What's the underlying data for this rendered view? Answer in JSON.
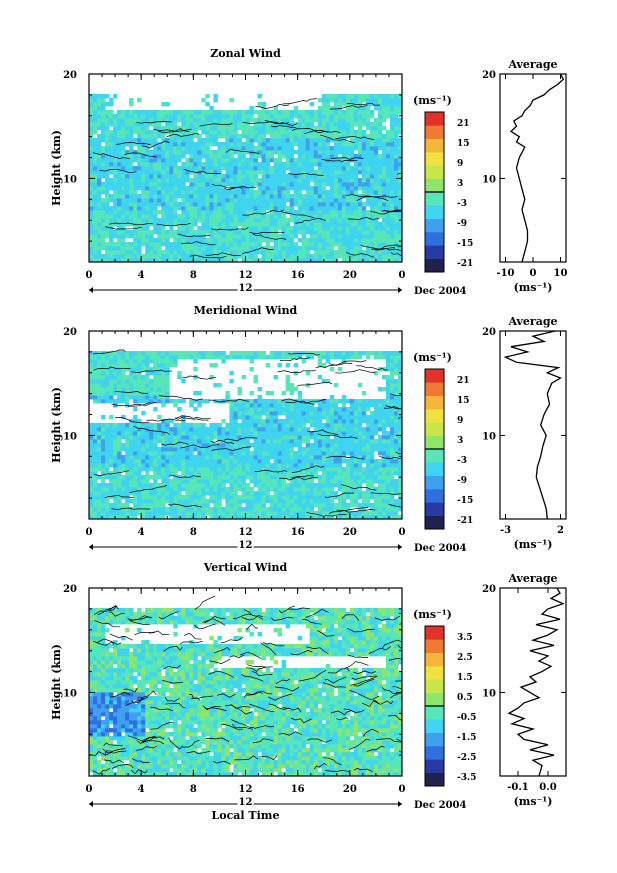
{
  "chart_data": [
    {
      "type": "heatmap",
      "title": "Zonal Wind",
      "ylabel": "Height (km)",
      "ylim": [
        2,
        20
      ],
      "yticks": [
        "10",
        "20"
      ],
      "xticks": [
        "0",
        "4",
        "8",
        "12",
        "16",
        "20",
        "0"
      ],
      "date_label": "12",
      "date_suffix": "Dec 2004",
      "colorbar": {
        "unit": "(ms⁻¹)",
        "ticks": [
          "21",
          "15",
          "9",
          "3",
          "-3",
          "-9",
          "-15",
          "-21"
        ],
        "range": [
          -24,
          24
        ]
      },
      "average": {
        "title": "Average",
        "xticks": [
          "-10",
          "0",
          "10"
        ],
        "xlabel": "(ms⁻¹)",
        "yticks": [
          "10",
          "20"
        ],
        "xlim": [
          -12,
          12
        ],
        "profile": {
          "height": [
            2,
            3,
            4,
            5,
            6,
            7,
            8,
            9,
            10,
            11,
            12,
            13,
            13.5,
            14,
            14.5,
            15,
            15.5,
            16,
            16.5,
            17,
            17.5,
            18,
            18.5,
            19,
            19.5,
            20
          ],
          "value": [
            -4,
            -3,
            -2,
            -2,
            -3,
            -4,
            -3,
            -4,
            -5,
            -6,
            -5,
            -3,
            -6,
            -5,
            -8,
            -6,
            -7,
            -4,
            -3,
            -1,
            0,
            4,
            6,
            9,
            11,
            10
          ]
        }
      }
    },
    {
      "type": "heatmap",
      "title": "Meridional Wind",
      "ylabel": "Height (km)",
      "ylim": [
        2,
        20
      ],
      "yticks": [
        "10",
        "20"
      ],
      "xticks": [
        "0",
        "4",
        "8",
        "12",
        "16",
        "20",
        "0"
      ],
      "date_label": "12",
      "date_suffix": "Dec 2004",
      "colorbar": {
        "unit": "(ms⁻¹)",
        "ticks": [
          "21",
          "15",
          "9",
          "3",
          "-3",
          "-9",
          "-15",
          "-21"
        ],
        "range": [
          -24,
          24
        ]
      },
      "average": {
        "title": "Average",
        "xticks": [
          "-3",
          "2"
        ],
        "xlabel": "(ms⁻¹)",
        "yticks": [
          "10",
          "20"
        ],
        "xlim": [
          -3.5,
          2.5
        ],
        "profile": {
          "height": [
            2,
            3,
            4,
            5,
            6,
            7,
            8,
            9,
            10,
            11,
            12,
            13,
            14,
            15,
            15.5,
            16,
            16.5,
            17,
            17.5,
            18,
            18.5,
            19,
            19.5,
            20
          ],
          "value": [
            0.8,
            0.7,
            0.4,
            0.1,
            -0.2,
            -0.1,
            0.2,
            0.4,
            0.7,
            0.2,
            0.5,
            1.0,
            0.8,
            1.2,
            2.0,
            0.8,
            1.8,
            -2.0,
            -3.0,
            -1.0,
            -2.5,
            0.5,
            -0.5,
            1.5
          ]
        }
      }
    },
    {
      "type": "heatmap",
      "title": "Vertical Wind",
      "ylabel": "Height (km)",
      "xlabel": "Local Time",
      "ylim": [
        2,
        20
      ],
      "yticks": [
        "10",
        "20"
      ],
      "xticks": [
        "0",
        "4",
        "8",
        "12",
        "16",
        "20",
        "0"
      ],
      "date_label": "12",
      "date_suffix": "Dec 2004",
      "colorbar": {
        "unit": "(ms⁻¹)",
        "ticks": [
          "3.5",
          "2.5",
          "1.5",
          "0.5",
          "-0.5",
          "-1.5",
          "-2.5",
          "-3.5"
        ],
        "range": [
          -4,
          4
        ]
      },
      "average": {
        "title": "Average",
        "xticks": [
          "-0.1",
          "0.0"
        ],
        "xlabel": "(ms⁻¹)",
        "yticks": [
          "10",
          "20"
        ],
        "xlim": [
          -0.16,
          0.06
        ],
        "profile": {
          "height": [
            2,
            3,
            3.5,
            4,
            4.5,
            5,
            5.5,
            6,
            6.5,
            7,
            7.5,
            8,
            8.5,
            9,
            9.5,
            10,
            10.5,
            11,
            11.5,
            12,
            12.5,
            13,
            13.5,
            14,
            14.5,
            15,
            15.5,
            16,
            16.5,
            17,
            17.5,
            18,
            18.5,
            19,
            19.5,
            20
          ],
          "value": [
            -0.03,
            -0.02,
            -0.05,
            0.02,
            -0.06,
            0.0,
            -0.08,
            -0.1,
            -0.05,
            -0.12,
            -0.08,
            -0.13,
            -0.1,
            -0.08,
            -0.03,
            -0.06,
            -0.09,
            -0.04,
            -0.06,
            -0.02,
            0.01,
            -0.03,
            0.0,
            -0.06,
            0.02,
            -0.05,
            0.0,
            0.03,
            -0.04,
            0.04,
            -0.02,
            0.0,
            0.05,
            0.01,
            0.04,
            0.03
          ]
        }
      }
    }
  ]
}
